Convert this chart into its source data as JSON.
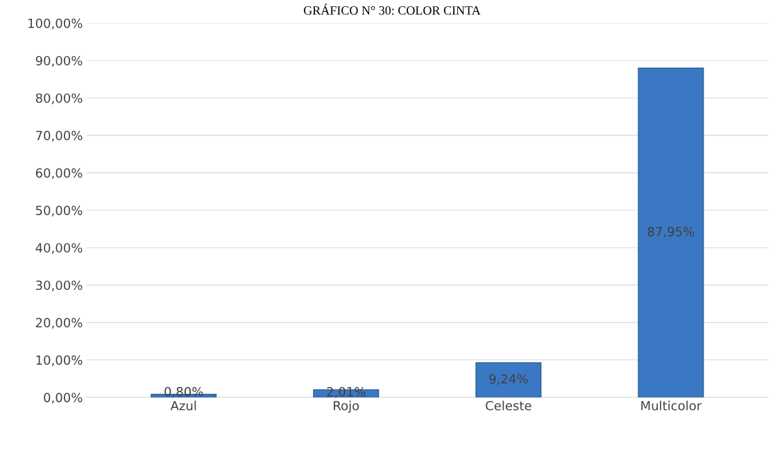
{
  "chart_data": {
    "type": "bar",
    "title": "GRÁFICO N° 30: COLOR CINTA",
    "categories": [
      "Azul",
      "Rojo",
      "Celeste",
      "Multicolor"
    ],
    "values": [
      0.8,
      2.01,
      9.24,
      87.95
    ],
    "value_labels": [
      "0,80%",
      "2,01%",
      "9,24%",
      "87,95%"
    ],
    "color": "#3a78c3",
    "ylim": [
      0,
      100
    ],
    "yticks": [
      {
        "value": 0,
        "label": "0,00%"
      },
      {
        "value": 10,
        "label": "10,00%"
      },
      {
        "value": 20,
        "label": "20,00%"
      },
      {
        "value": 30,
        "label": "30,00%"
      },
      {
        "value": 40,
        "label": "40,00%"
      },
      {
        "value": 50,
        "label": "50,00%"
      },
      {
        "value": 60,
        "label": "60,00%"
      },
      {
        "value": 70,
        "label": "70,00%"
      },
      {
        "value": 80,
        "label": "80,00%"
      },
      {
        "value": 90,
        "label": "90,00%"
      },
      {
        "value": 100,
        "label": "100,00%"
      }
    ],
    "grid": "y"
  }
}
